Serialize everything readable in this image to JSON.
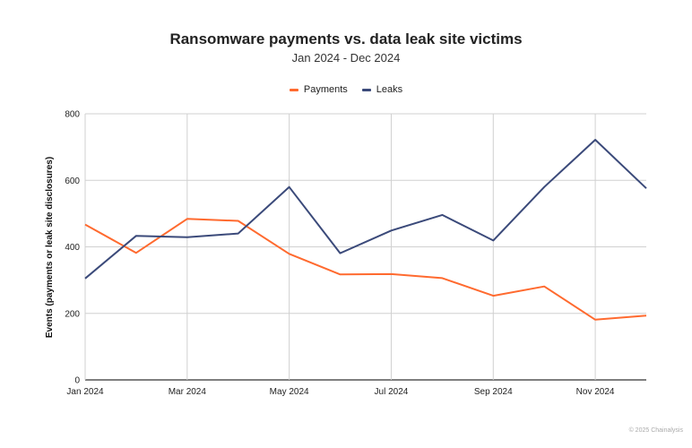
{
  "chart_data": {
    "type": "line",
    "title": "Ransomware payments vs. data leak site victims",
    "subtitle": "Jan 2024 - Dec 2024",
    "ylabel": "Events (payments or leak site disclosures)",
    "xlabel": "",
    "categories": [
      "Jan 2024",
      "Feb 2024",
      "Mar 2024",
      "Apr 2024",
      "May 2024",
      "Jun 2024",
      "Jul 2024",
      "Aug 2024",
      "Sep 2024",
      "Oct 2024",
      "Nov 2024",
      "Dec 2024"
    ],
    "x_tick_labels": [
      "Jan 2024",
      "Mar 2024",
      "May 2024",
      "Jul 2024",
      "Sep 2024",
      "Nov 2024"
    ],
    "y_ticks": [
      0,
      200,
      400,
      600,
      800
    ],
    "ylim": [
      0,
      800
    ],
    "grid": true,
    "legend_position": "top-center",
    "series": [
      {
        "name": "Payments",
        "color": "#ff6a2f",
        "values": [
          467,
          382,
          484,
          478,
          379,
          317,
          318,
          306,
          253,
          281,
          181,
          193
        ]
      },
      {
        "name": "Leaks",
        "color": "#3b4a7a",
        "values": [
          305,
          433,
          429,
          440,
          580,
          381,
          449,
          496,
          419,
          580,
          722,
          576
        ]
      }
    ]
  },
  "footer": {
    "copyright": "© 2025 Chainalysis"
  }
}
